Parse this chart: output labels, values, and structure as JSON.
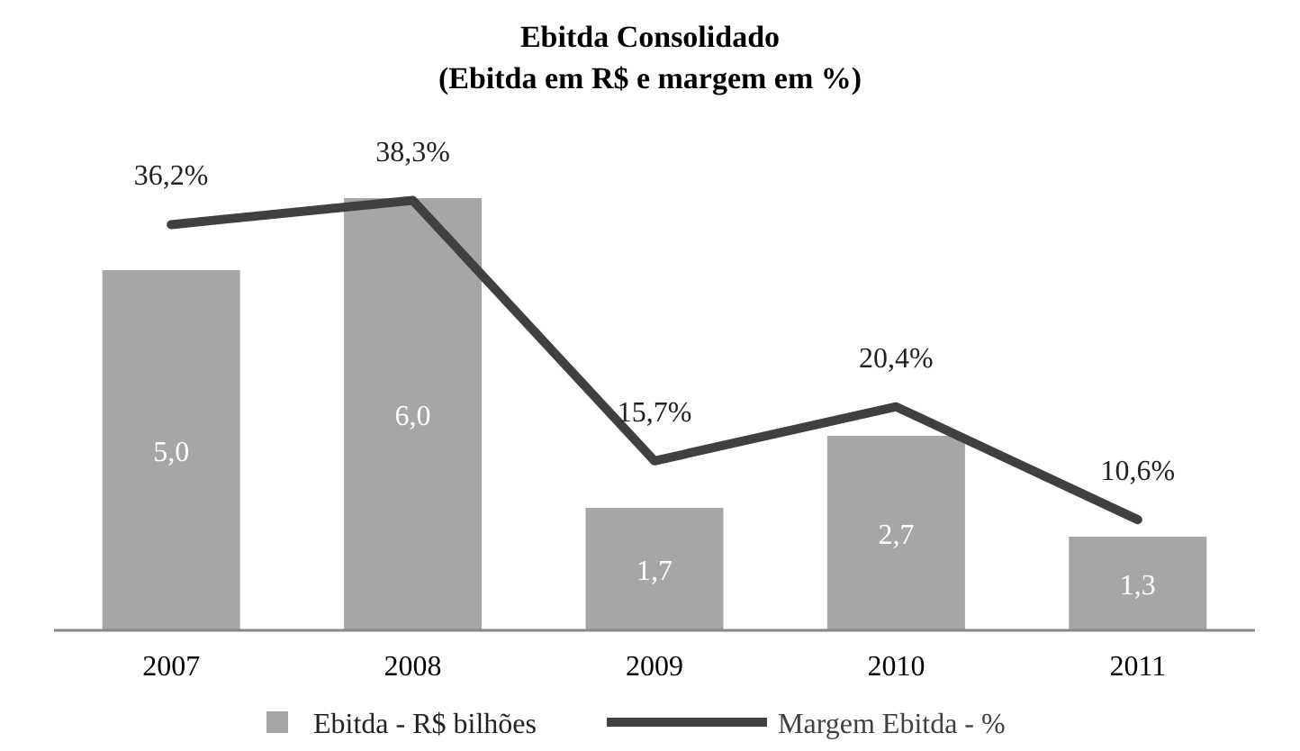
{
  "chart_data": {
    "type": "bar",
    "title": "Ebitda Consolidado",
    "subtitle": "(Ebitda em R$ e margem em %)",
    "categories": [
      "2007",
      "2008",
      "2009",
      "2010",
      "2011"
    ],
    "series": [
      {
        "name": "Ebitda - R$ bilhões",
        "color": "#a6a6a6",
        "values": [
          5.0,
          6.0,
          1.7,
          2.7,
          1.3
        ],
        "value_labels": [
          "5,0",
          "6,0",
          "1,7",
          "2,7",
          "1,3"
        ]
      },
      {
        "name": "Margem Ebitda - %",
        "type": "line",
        "axis": "y2",
        "color": "#404040",
        "values": [
          36.2,
          38.3,
          15.7,
          20.4,
          10.6
        ],
        "value_labels": [
          "36,2%",
          "38,3%",
          "15,7%",
          "20,4%",
          "10,6%"
        ]
      }
    ],
    "ylim": [
      0,
      6
    ],
    "y2lim": [
      1,
      38.5
    ],
    "tick_labels": "x",
    "legend": "bottom",
    "marker": "none",
    "line_style": "solid"
  }
}
